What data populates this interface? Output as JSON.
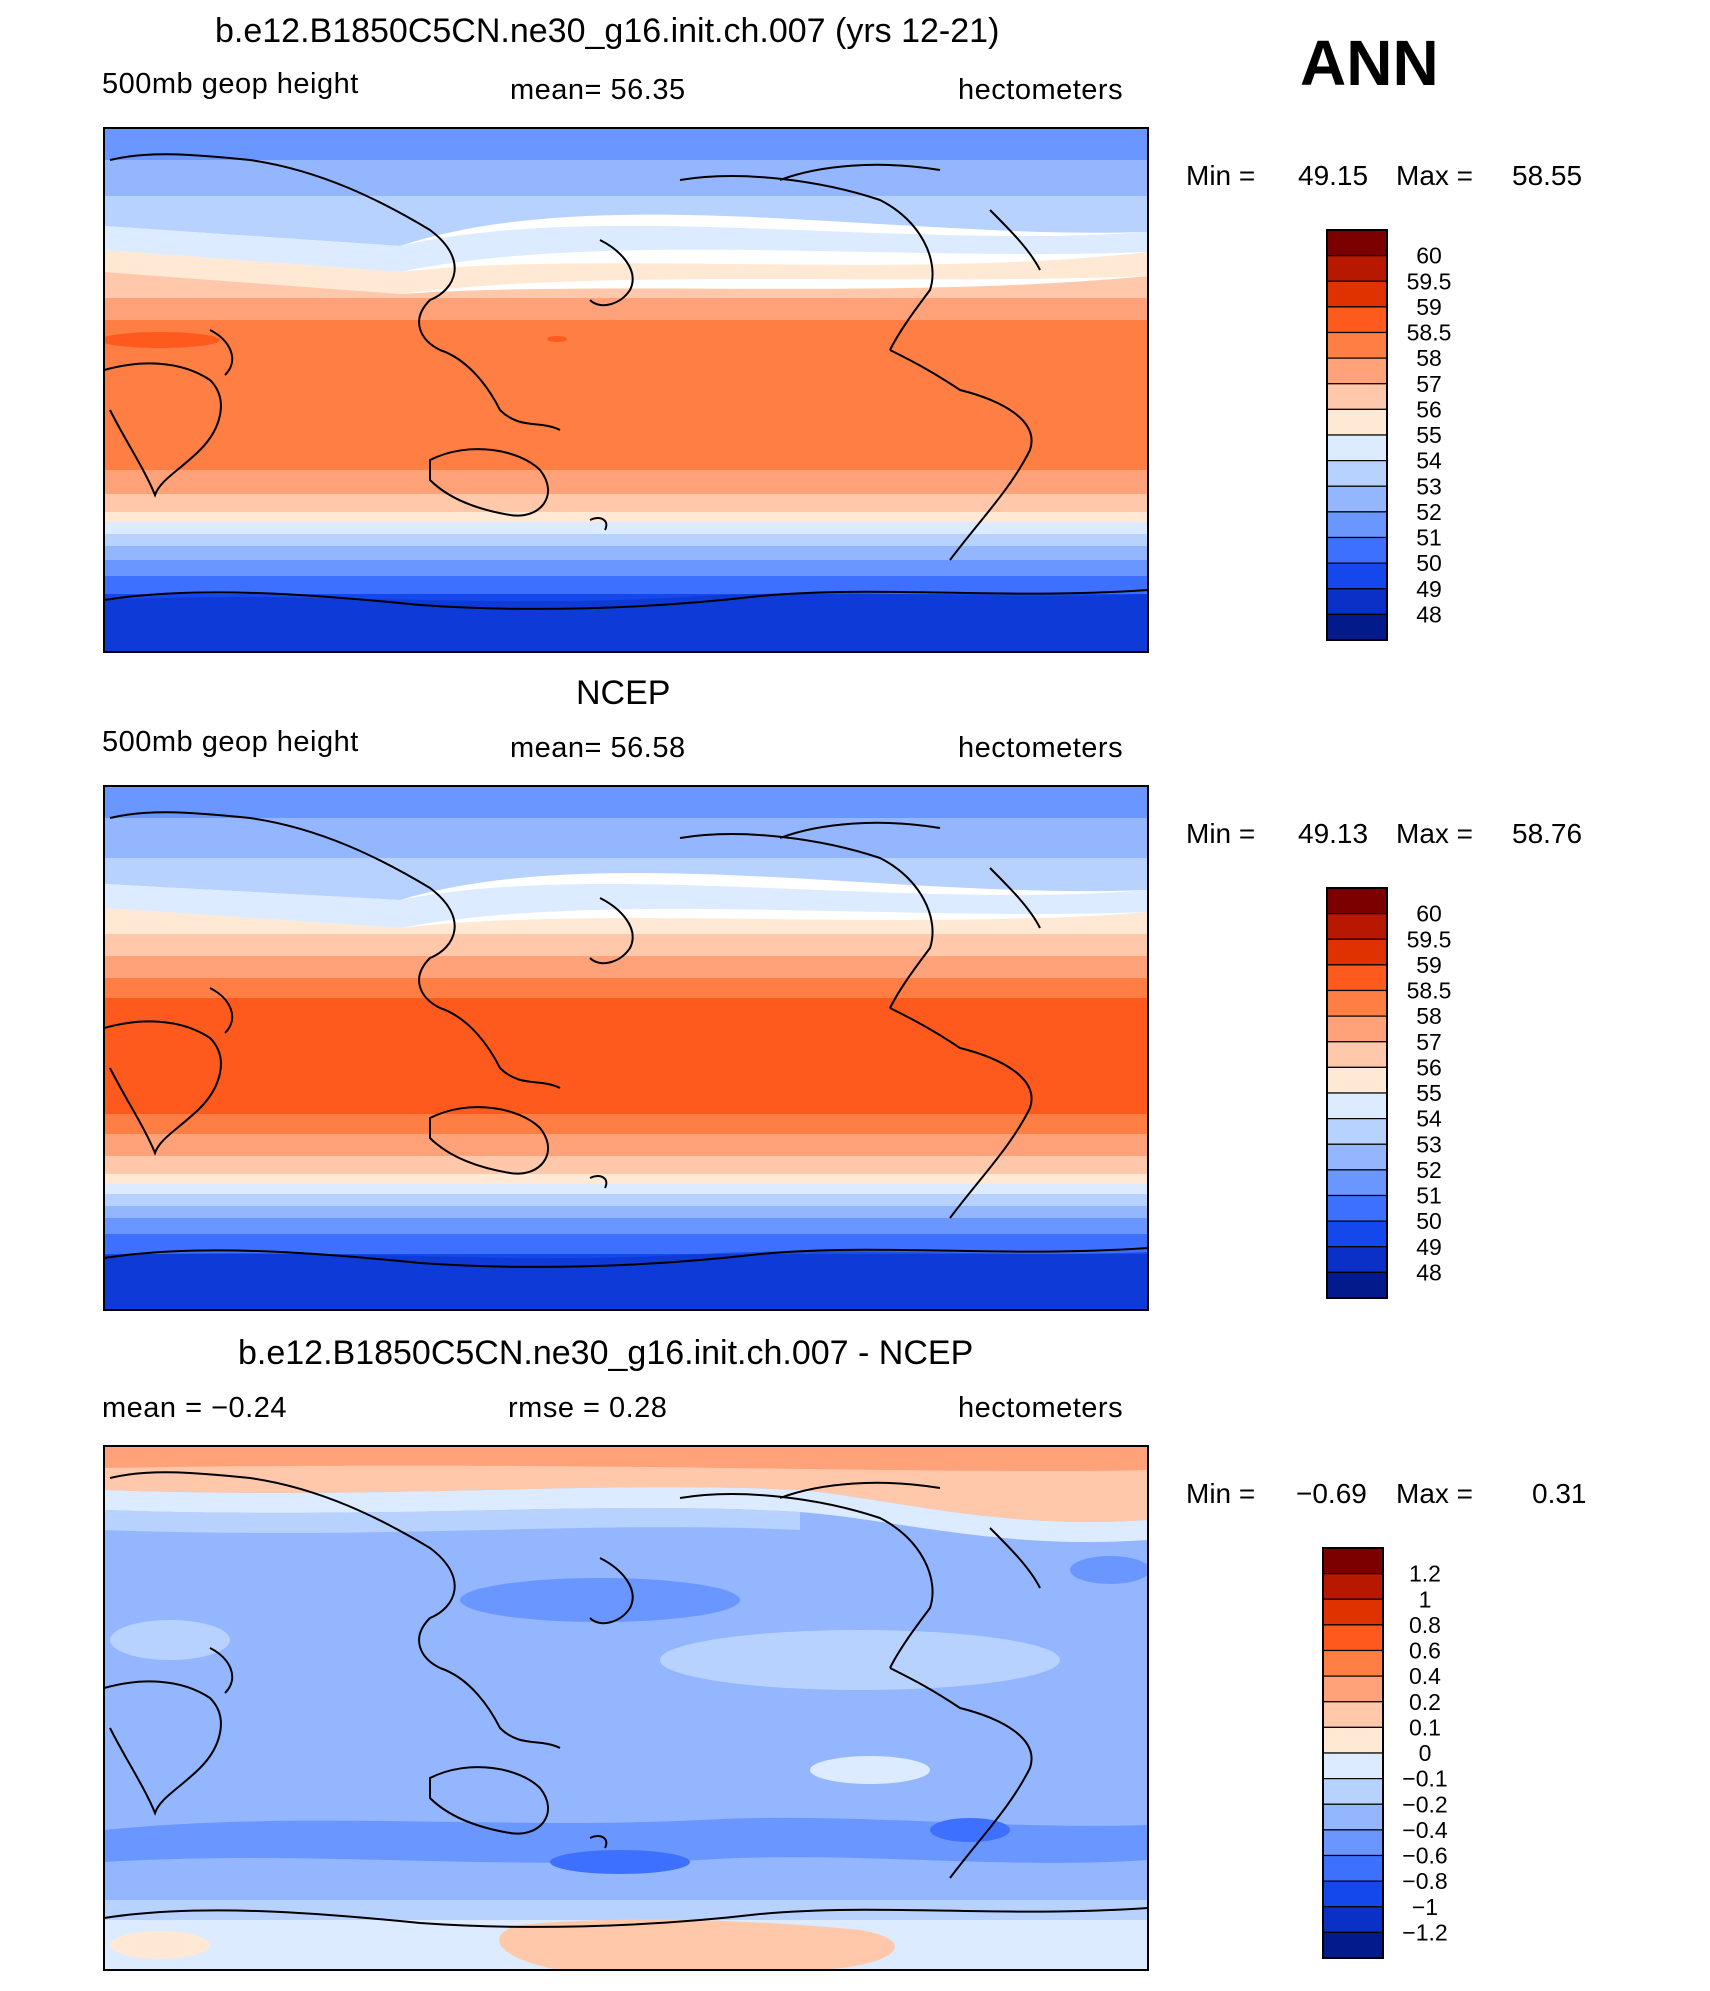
{
  "season": "ANN",
  "panels": [
    {
      "title": "b.e12.B1850C5CN.ne30_g16.init.ch.007 (yrs 12-21)",
      "left_label": "500mb  geop  height",
      "mid_label": "mean=   56.35",
      "units": "hectometers",
      "min_label": "Min  =",
      "min_value": "49.15",
      "max_label": "Max  =",
      "max_value": "58.55",
      "colorbar_labels": [
        "60",
        "59.5",
        "59",
        "58.5",
        "58",
        "57",
        "56",
        "55",
        "54",
        "53",
        "52",
        "51",
        "50",
        "49",
        "48"
      ],
      "colorbar_colors": [
        "#7d0000",
        "#b81800",
        "#e03200",
        "#ff5a1e",
        "#ff7e44",
        "#ffa27a",
        "#ffc8aa",
        "#ffe8d4",
        "#dcebff",
        "#b8d2ff",
        "#94b6ff",
        "#6a96ff",
        "#3e70ff",
        "#1548ec",
        "#0a30c8",
        "#021a8c"
      ]
    },
    {
      "title": "NCEP",
      "left_label": "500mb  geop  height",
      "mid_label": "mean=   56.58",
      "units": "hectometers",
      "min_label": "Min  =",
      "min_value": "49.13",
      "max_label": "Max  =",
      "max_value": "58.76",
      "colorbar_labels": [
        "60",
        "59.5",
        "59",
        "58.5",
        "58",
        "57",
        "56",
        "55",
        "54",
        "53",
        "52",
        "51",
        "50",
        "49",
        "48"
      ],
      "colorbar_colors": [
        "#7d0000",
        "#b81800",
        "#e03200",
        "#ff5a1e",
        "#ff7e44",
        "#ffa27a",
        "#ffc8aa",
        "#ffe8d4",
        "#dcebff",
        "#b8d2ff",
        "#94b6ff",
        "#6a96ff",
        "#3e70ff",
        "#1548ec",
        "#0a30c8",
        "#021a8c"
      ]
    },
    {
      "title": "b.e12.B1850C5CN.ne30_g16.init.ch.007 - NCEP",
      "left_label": "mean  =    −0.24",
      "mid_label": "rmse  =     0.28",
      "units": "hectometers",
      "min_label": "Min  =",
      "min_value": "−0.69",
      "max_label": "Max  =",
      "max_value": "0.31",
      "colorbar_labels": [
        "1.2",
        "1",
        "0.8",
        "0.6",
        "0.4",
        "0.2",
        "0.1",
        "0",
        "−0.1",
        "−0.2",
        "−0.4",
        "−0.6",
        "−0.8",
        "−1",
        "−1.2"
      ],
      "colorbar_colors": [
        "#7d0000",
        "#b81800",
        "#e03200",
        "#ff5a1e",
        "#ff7e44",
        "#ffa27a",
        "#ffc8aa",
        "#ffe8d4",
        "#dcebff",
        "#b8d2ff",
        "#94b6ff",
        "#6a96ff",
        "#3e70ff",
        "#1548ec",
        "#0a30c8",
        "#021a8c"
      ]
    }
  ]
}
